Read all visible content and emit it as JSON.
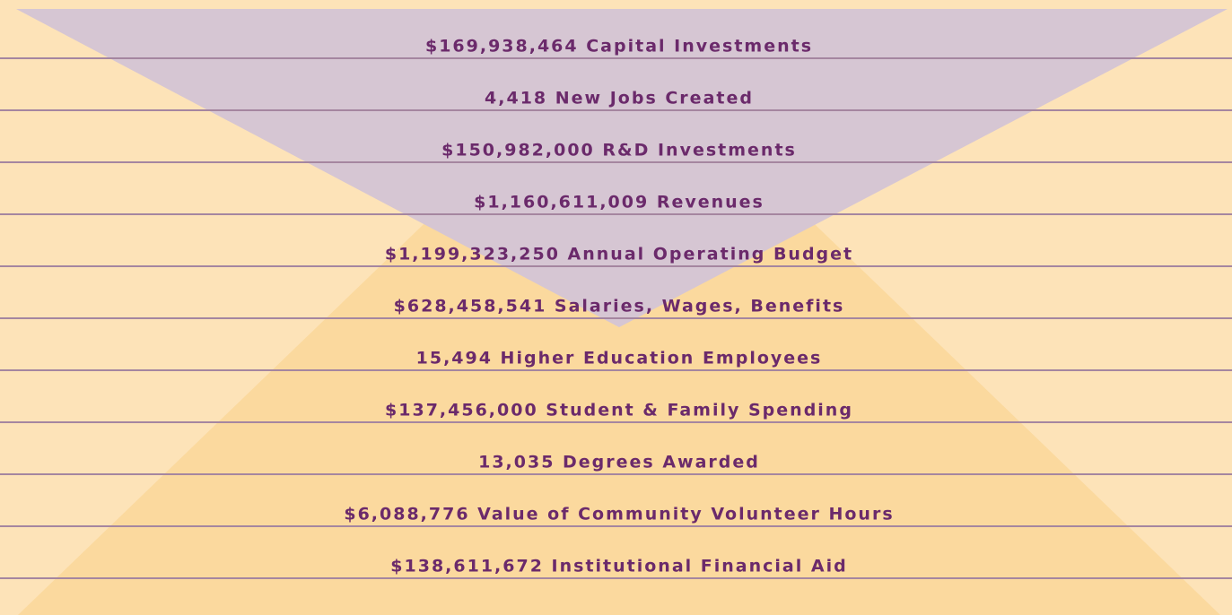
{
  "items": [
    "$169,938,464 Capital Investments",
    "4,418 New Jobs Created",
    "$150,982,000 R&D Investments",
    "$1,160,611,009 Revenues",
    "$1,199,323,250 Annual Operating Budget",
    "$628,458,541 Salaries, Wages, Benefits",
    "15,494 Higher Education Employees",
    "$137,456,000 Student & Family Spending",
    "13,035 Degrees Awarded",
    "$6,088,776 Value of Community Volunteer Hours",
    "$138,611,672 Institutional Financial Aid"
  ]
}
